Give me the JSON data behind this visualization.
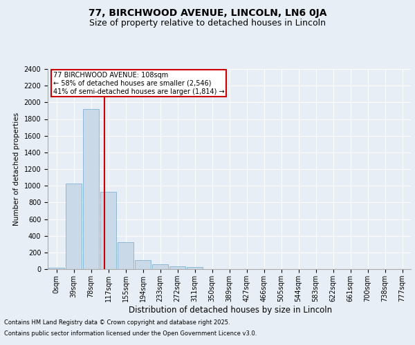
{
  "title1": "77, BIRCHWOOD AVENUE, LINCOLN, LN6 0JA",
  "title2": "Size of property relative to detached houses in Lincoln",
  "xlabel": "Distribution of detached houses by size in Lincoln",
  "ylabel": "Number of detached properties",
  "bar_labels": [
    "0sqm",
    "39sqm",
    "78sqm",
    "117sqm",
    "155sqm",
    "194sqm",
    "233sqm",
    "272sqm",
    "311sqm",
    "350sqm",
    "389sqm",
    "427sqm",
    "466sqm",
    "505sqm",
    "544sqm",
    "583sqm",
    "622sqm",
    "661sqm",
    "700sqm",
    "738sqm",
    "777sqm"
  ],
  "bar_values": [
    18,
    1030,
    1920,
    930,
    325,
    110,
    55,
    35,
    25,
    0,
    0,
    0,
    0,
    0,
    0,
    0,
    0,
    0,
    0,
    0,
    0
  ],
  "bar_color": "#c9d9e8",
  "bar_edge_color": "#6ea8d0",
  "annotation_box_text": "77 BIRCHWOOD AVENUE: 108sqm\n← 58% of detached houses are smaller (2,546)\n41% of semi-detached houses are larger (1,814) →",
  "annotation_box_color": "#cc0000",
  "ylim": [
    0,
    2400
  ],
  "yticks": [
    0,
    200,
    400,
    600,
    800,
    1000,
    1200,
    1400,
    1600,
    1800,
    2000,
    2200,
    2400
  ],
  "background_color": "#e8eef5",
  "plot_bg_color": "#e8eef5",
  "footer_line1": "Contains HM Land Registry data © Crown copyright and database right 2025.",
  "footer_line2": "Contains public sector information licensed under the Open Government Licence v3.0.",
  "title1_fontsize": 10,
  "title2_fontsize": 9,
  "tick_fontsize": 7,
  "xlabel_fontsize": 8.5,
  "ylabel_fontsize": 7.5,
  "footer_fontsize": 6,
  "annot_fontsize": 7
}
